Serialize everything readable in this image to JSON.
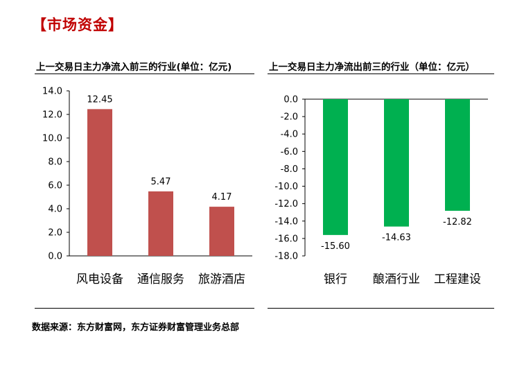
{
  "section_title": "【市场资金】",
  "source_note": "数据来源：东方财富网，东方证券财富管理业务总部",
  "colors": {
    "title": "#c00000",
    "inflow_bar": "#c0504d",
    "outflow_bar": "#00b050",
    "axis": "#000000"
  },
  "chart_data": [
    {
      "type": "bar",
      "title": "上一交易日主力净流入前三的行业(单位：亿元)",
      "categories": [
        "风电设备",
        "通信服务",
        "旅游酒店"
      ],
      "values": [
        12.45,
        5.47,
        4.17
      ],
      "data_labels": [
        "12.45",
        "5.47",
        "4.17"
      ],
      "ylim": [
        0,
        14
      ],
      "yticks": [
        "0.0",
        "2.0",
        "4.0",
        "6.0",
        "8.0",
        "10.0",
        "12.0",
        "14.0"
      ],
      "grid": false,
      "legend": "none"
    },
    {
      "type": "bar",
      "title": "上一交易日主力净流出前三的行业（单位：亿元）",
      "categories": [
        "银行",
        "酿酒行业",
        "工程建设"
      ],
      "values": [
        -15.6,
        -14.63,
        -12.82
      ],
      "data_labels": [
        "-15.60",
        "-14.63",
        "-12.82"
      ],
      "ylim": [
        -18,
        0
      ],
      "yticks": [
        "0.0",
        "-2.0",
        "-4.0",
        "-6.0",
        "-8.0",
        "-10.0",
        "-12.0",
        "-14.0",
        "-16.0",
        "-18.0"
      ],
      "grid": false,
      "legend": "none"
    }
  ]
}
